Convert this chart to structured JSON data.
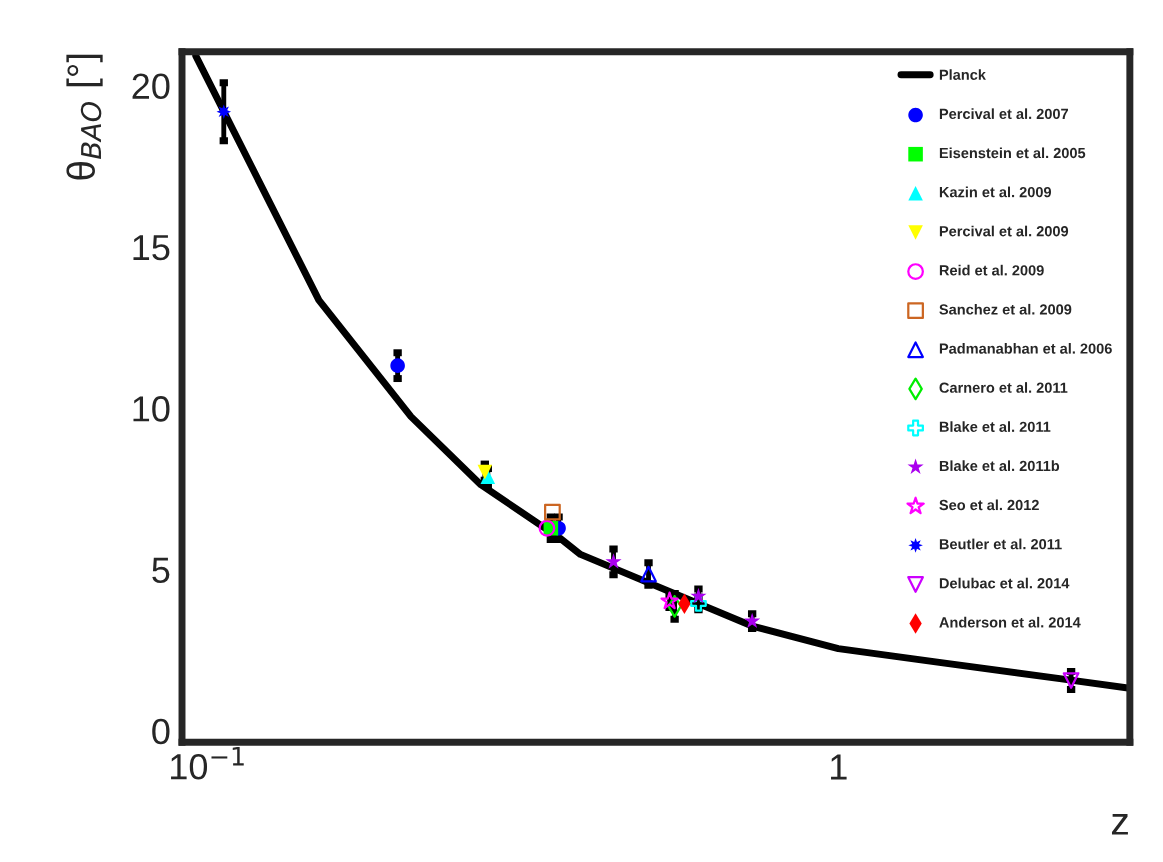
{
  "chart_data": {
    "type": "scatter",
    "xlabel": "z",
    "ylabel": "θ$_{BAO}$ [°]",
    "log": "x",
    "xlim": [
      0.091,
      2.9
    ],
    "xticks": [
      {
        "value": 0.1,
        "label": "10$^{−1}$"
      },
      1
    ],
    "ylim": [
      -0.35,
      21.05
    ],
    "yticks": [
      0,
      5,
      10,
      15,
      20
    ],
    "grid": false,
    "legend": "top right",
    "series": [
      {
        "name": "Planck",
        "type": "line",
        "color": "#000000",
        "marker": "none",
        "x": [
          0.0957,
          0.15,
          0.21,
          0.271,
          0.362,
          0.39,
          0.73,
          1.0,
          1.475,
          2.245,
          2.9
        ],
        "values": [
          20.92,
          13.35,
          9.74,
          7.63,
          5.97,
          5.47,
          3.25,
          2.55,
          2.1,
          1.62,
          1.32
        ]
      },
      {
        "name": "Percival et al. 2007",
        "color": "#0000ff",
        "marker": "circle",
        "x": [
          0.2,
          0.36
        ],
        "values": [
          11.32,
          6.28
        ],
        "errors": [
          0.4,
          0.35
        ]
      },
      {
        "name": "Eisenstein et al. 2005",
        "color": "#00ff00",
        "marker": "square",
        "x": [
          0.35
        ],
        "values": [
          6.28
        ],
        "errors": [
          0.35
        ]
      },
      {
        "name": "Kazin et al. 2009",
        "color": "#00ffff",
        "marker": "triangle",
        "x": [
          0.278
        ],
        "values": [
          7.88
        ],
        "errors": [
          0.25
        ]
      },
      {
        "name": "Percival et al. 2009",
        "color": "#ffff00",
        "marker": "triangle-down",
        "x": [
          0.275
        ],
        "values": [
          8.02
        ],
        "errors": [
          0.25
        ]
      },
      {
        "name": "Reid et al. 2009",
        "color": "#ff00ff",
        "marker": "circle-open",
        "x": [
          0.345
        ],
        "values": [
          6.28
        ]
      },
      {
        "name": "Sanchez et al. 2009",
        "color": "#cc6622",
        "marker": "square-open",
        "x": [
          0.352
        ],
        "values": [
          6.78
        ]
      },
      {
        "name": "Padmanabhan et al. 2006",
        "color": "#0000ff",
        "marker": "triangle-open",
        "x": [
          0.5
        ],
        "values": [
          4.86
        ],
        "errors": [
          0.35
        ]
      },
      {
        "name": "Carnero et al. 2011",
        "color": "#00ee00",
        "marker": "diamond-open",
        "x": [
          0.55
        ],
        "values": [
          3.86
        ],
        "errors": [
          0.4
        ]
      },
      {
        "name": "Blake et al. 2011",
        "color": "#00ffff",
        "marker": "cross-open",
        "x": [
          0.6
        ],
        "values": [
          3.95
        ],
        "errors": [
          0.2
        ]
      },
      {
        "name": "Blake et al. 2011b",
        "color": "#aa00ee",
        "marker": "star",
        "x": [
          0.44,
          0.6,
          0.73
        ],
        "values": [
          5.24,
          4.17,
          3.4
        ],
        "errors": [
          0.4,
          0.23,
          0.23
        ]
      },
      {
        "name": "Seo et al. 2012",
        "color": "#ff00ff",
        "marker": "star-open",
        "x": [
          0.54
        ],
        "values": [
          4.02
        ],
        "errors": [
          0.2
        ]
      },
      {
        "name": "Beutler et al. 2011",
        "color": "#0000ff",
        "marker": "asterisk",
        "x": [
          0.106
        ],
        "values": [
          19.19
        ],
        "errors": [
          0.9
        ]
      },
      {
        "name": "Delubac et al. 2014",
        "color": "#cc00ff",
        "marker": "triangle-down-open",
        "x": [
          2.34
        ],
        "values": [
          1.56
        ],
        "errors": [
          0.28
        ]
      },
      {
        "name": "Anderson et al. 2014",
        "color": "#ff0000",
        "marker": "diamond",
        "x": [
          0.57
        ],
        "values": [
          3.94
        ]
      }
    ]
  }
}
